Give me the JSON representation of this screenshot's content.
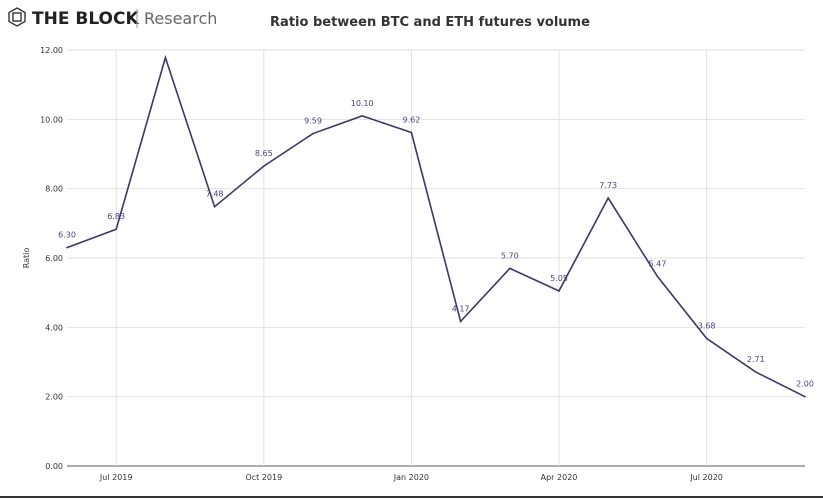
{
  "brand": {
    "name": "THE BLOCK",
    "sub": "Research"
  },
  "chart_data": {
    "type": "line",
    "title": "Ratio between BTC and ETH futures volume",
    "xlabel": "",
    "ylabel": "Ratio",
    "x": [
      "2019-06",
      "2019-07",
      "2019-08",
      "2019-09",
      "2019-10",
      "2019-11",
      "2019-12",
      "2020-01",
      "2020-02",
      "2020-03",
      "2020-04",
      "2020-05",
      "2020-06",
      "2020-07",
      "2020-08",
      "2020-09"
    ],
    "values": [
      6.3,
      6.83,
      11.78,
      7.48,
      8.65,
      9.59,
      10.1,
      9.62,
      4.17,
      5.7,
      5.05,
      7.73,
      5.47,
      3.68,
      2.71,
      2.0
    ],
    "data_labels": [
      "6.30",
      "6.83",
      "",
      "7.48",
      "8.65",
      "9.59",
      "10.10",
      "9.62",
      "4.17",
      "5.70",
      "5.05",
      "7.73",
      "5.47",
      "3.68",
      "2.71",
      "2.00"
    ],
    "ylim": [
      0,
      12
    ],
    "yticks": [
      "0.00",
      "2.00",
      "4.00",
      "6.00",
      "8.00",
      "10.00",
      "12.00"
    ],
    "xticks": [
      {
        "x": "2019-07",
        "label": "Jul 2019"
      },
      {
        "x": "2019-10",
        "label": "Oct 2019"
      },
      {
        "x": "2020-01",
        "label": "Jan 2020"
      },
      {
        "x": "2020-04",
        "label": "Apr 2020"
      },
      {
        "x": "2020-07",
        "label": "Jul 2020"
      }
    ],
    "grid": true,
    "line_color": "#3d3768",
    "label_color": "#4a4480"
  }
}
